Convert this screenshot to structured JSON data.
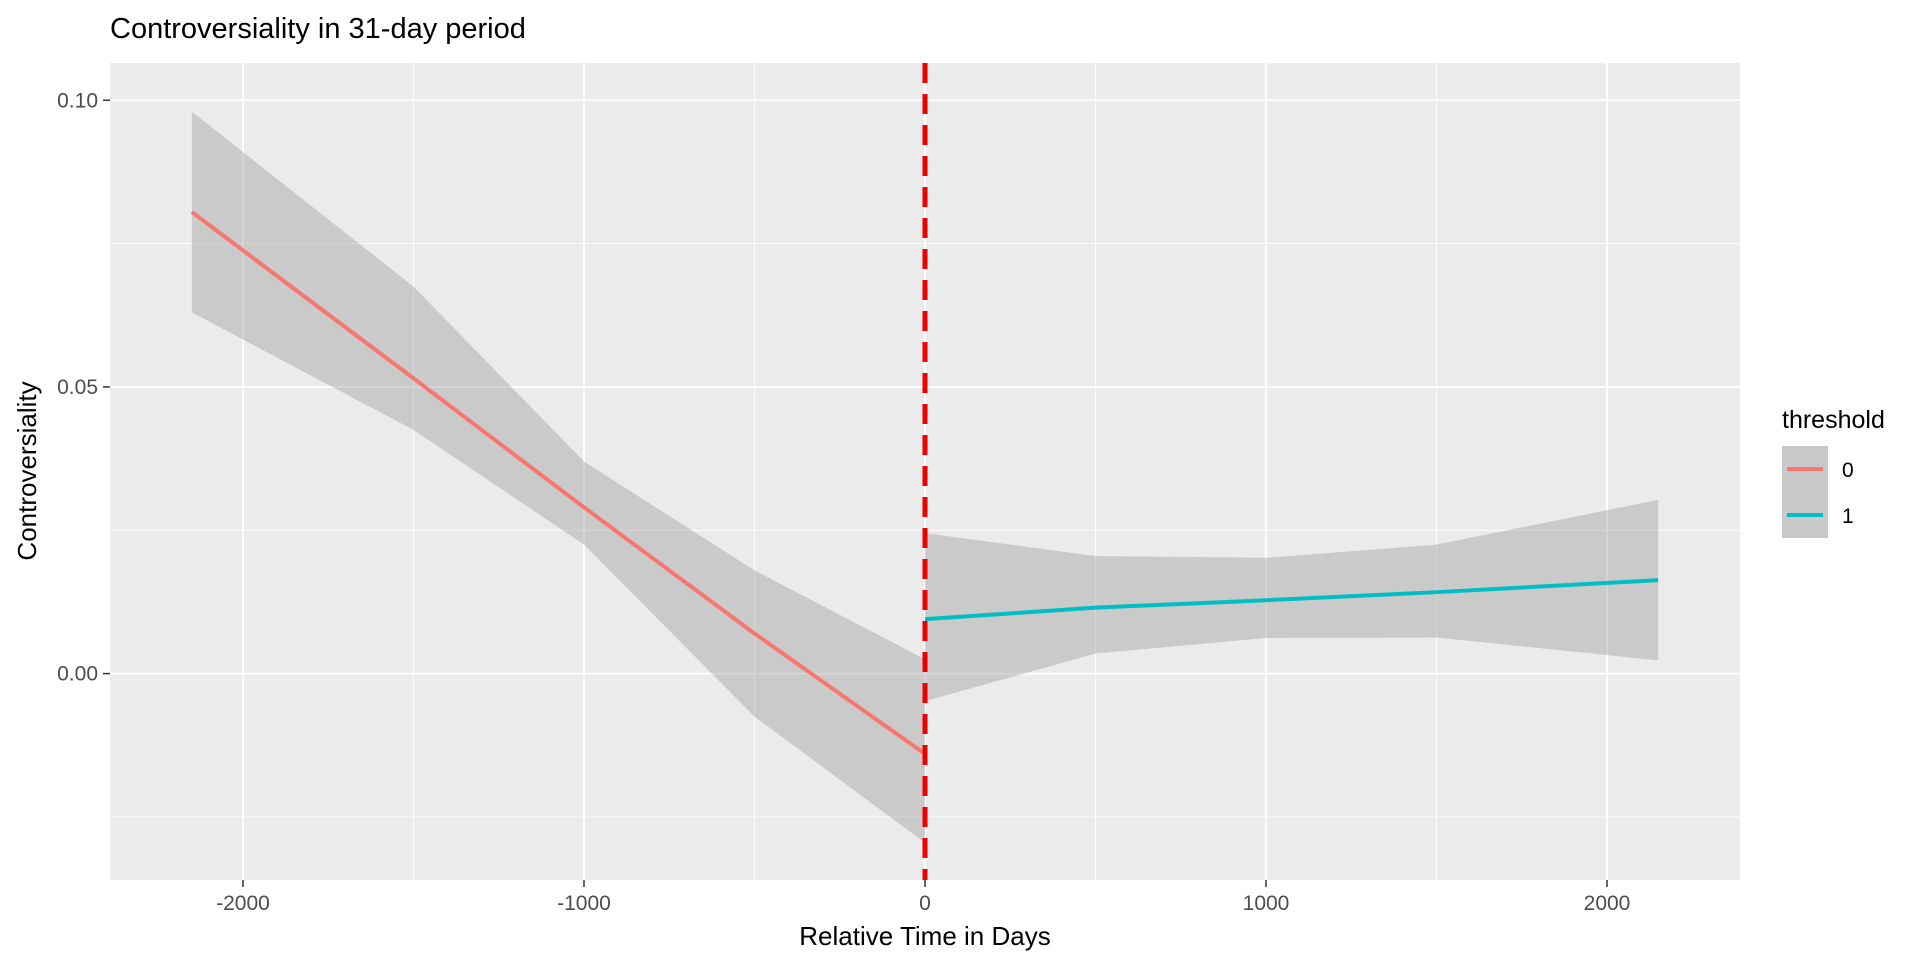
{
  "chart_data": {
    "type": "line",
    "title": "Controversiality in 31-day period",
    "xlabel": "Relative Time in Days",
    "ylabel": "Controversiality",
    "xlim": [
      -2390,
      2390
    ],
    "ylim": [
      -0.036,
      0.1065
    ],
    "x_ticks": [
      -2000,
      -1000,
      0,
      1000,
      2000
    ],
    "x_tick_labels": [
      "-2000",
      "-1000",
      "0",
      "1000",
      "2000"
    ],
    "y_ticks": [
      0.0,
      0.05,
      0.1
    ],
    "y_tick_labels": [
      "0.00",
      "0.05",
      "0.10"
    ],
    "grid": true,
    "legend": {
      "title": "threshold",
      "position": "right",
      "entries": [
        {
          "label": "0",
          "color": "#F8766D"
        },
        {
          "label": "1",
          "color": "#00BFC4"
        }
      ]
    },
    "series": [
      {
        "name": "0",
        "color": "#F8766D",
        "x": [
          -2150,
          -1500,
          -1000,
          -500,
          0
        ],
        "y": [
          0.0805,
          0.0515,
          0.029,
          0.007,
          -0.014
        ],
        "ci_upper": [
          0.098,
          0.0675,
          0.037,
          0.018,
          0.0025
        ],
        "ci_lower": [
          0.063,
          0.0425,
          0.0225,
          -0.0075,
          -0.0295
        ]
      },
      {
        "name": "1",
        "color": "#00BFC4",
        "x": [
          0,
          500,
          1000,
          1500,
          2150
        ],
        "y": [
          0.0095,
          0.0115,
          0.0128,
          0.0142,
          0.0163
        ],
        "ci_upper": [
          0.0245,
          0.0205,
          0.0202,
          0.0225,
          0.0303
        ],
        "ci_lower": [
          -0.0048,
          0.0035,
          0.0062,
          0.0063,
          0.0023
        ]
      }
    ],
    "annotations": [
      {
        "type": "vline",
        "x": 0,
        "color": "#EE0000",
        "style": "dashed"
      }
    ]
  }
}
